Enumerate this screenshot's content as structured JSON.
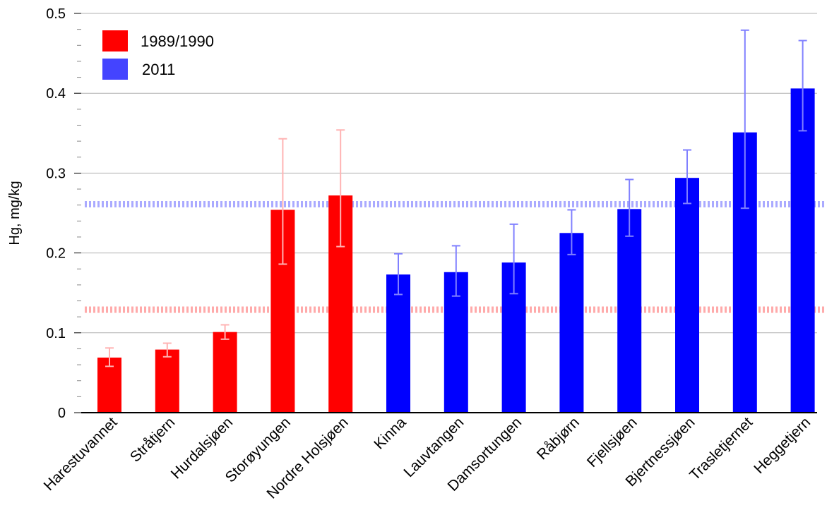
{
  "chart_data": {
    "type": "bar",
    "ylabel": "Hg, mg/kg",
    "ylim": [
      0,
      0.5
    ],
    "yticks": [
      "0",
      "0.1",
      "0.2",
      "0.3",
      "0.4",
      "0.5"
    ],
    "grid": true,
    "legend_position": "top-left",
    "categories": [
      "Harestuvannet",
      "Stråtjern",
      "Hurdalsjøen",
      "Storøyungen",
      "Nordre Holsjøen",
      "Kinna",
      "Lauvtangen",
      "Damsortungen",
      "Råbjørn",
      "Fjellsjøen",
      "Bjertnessjøen",
      "Trasletjernet",
      "Heggetjern"
    ],
    "series": [
      {
        "name": "1989/1990",
        "color": "#ff0000",
        "error_color": "#ffb3b3",
        "mean_line": 0.129,
        "mean_line_color": "#ffaaaa",
        "values": [
          0.069,
          0.079,
          0.101,
          0.254,
          0.272,
          null,
          null,
          null,
          null,
          null,
          null,
          null,
          null
        ],
        "err_low": [
          0.058,
          0.07,
          0.092,
          0.186,
          0.208,
          null,
          null,
          null,
          null,
          null,
          null,
          null,
          null
        ],
        "err_high": [
          0.081,
          0.087,
          0.11,
          0.343,
          0.354,
          null,
          null,
          null,
          null,
          null,
          null,
          null,
          null
        ]
      },
      {
        "name": "2011",
        "color": "#0000ff",
        "legend_color": "#4444ff",
        "error_color": "#8080ff",
        "mean_line": 0.261,
        "mean_line_color": "#aaaaff",
        "values": [
          null,
          null,
          null,
          null,
          null,
          0.173,
          0.176,
          0.188,
          0.225,
          0.255,
          0.294,
          0.351,
          0.406
        ],
        "err_low": [
          null,
          null,
          null,
          null,
          null,
          0.148,
          0.146,
          0.149,
          0.198,
          0.221,
          0.262,
          0.256,
          0.353
        ],
        "err_high": [
          null,
          null,
          null,
          null,
          null,
          0.199,
          0.209,
          0.236,
          0.254,
          0.292,
          0.329,
          0.479,
          0.466
        ]
      }
    ]
  }
}
